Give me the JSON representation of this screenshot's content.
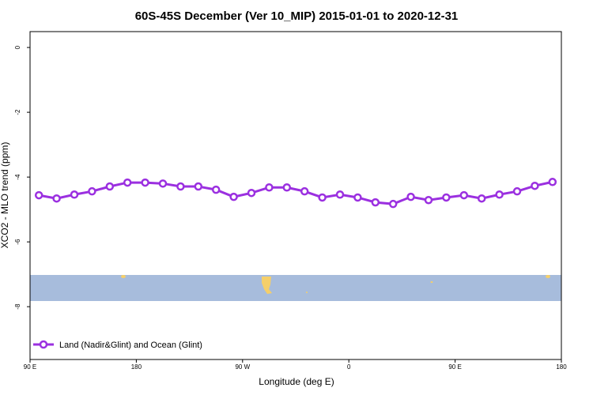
{
  "chart_data": {
    "type": "line",
    "title": "60S-45S December (Ver 10_MIP)   2015-01-01 to 2020-12-31",
    "x_label": "Longitude (deg E)",
    "y_label": "XCO2 - MLO trend (ppm)",
    "x": [
      97.5,
      112.5,
      127.5,
      142.5,
      157.5,
      172.5,
      187.5,
      202.5,
      217.5,
      232.5,
      247.5,
      262.5,
      277.5,
      292.5,
      307.5,
      322.5,
      337.5,
      352.5,
      367.5,
      382.5,
      397.5,
      412.5,
      427.5,
      442.5,
      457.5,
      472.5,
      487.5,
      502.5,
      517.5,
      532.5
    ],
    "series": [
      {
        "name": "Land (Nadir&Glint) and Ocean (Glint)",
        "color": "#9b30e0",
        "values": [
          -4.56,
          -4.66,
          -4.54,
          -4.44,
          -4.29,
          -4.17,
          -4.17,
          -4.2,
          -4.29,
          -4.29,
          -4.39,
          -4.61,
          -4.49,
          -4.32,
          -4.32,
          -4.44,
          -4.63,
          -4.54,
          -4.63,
          -4.78,
          -4.83,
          -4.61,
          -4.71,
          -4.63,
          -4.56,
          -4.66,
          -4.54,
          -4.44,
          -4.27,
          -4.15
        ]
      }
    ],
    "xlim": [
      90,
      540
    ],
    "xticks": [
      {
        "value": 90,
        "label": "90 E"
      },
      180,
      {
        "value": 270,
        "label": "90 W"
      },
      {
        "value": 360,
        "label": "0"
      },
      {
        "value": 450,
        "label": "90 E"
      },
      {
        "value": 540,
        "label": "180"
      }
    ],
    "ylim": [
      -9.63,
      0.49
    ],
    "yticks": [
      0,
      -2,
      -4,
      -6,
      -8
    ],
    "legend": "lower left"
  }
}
